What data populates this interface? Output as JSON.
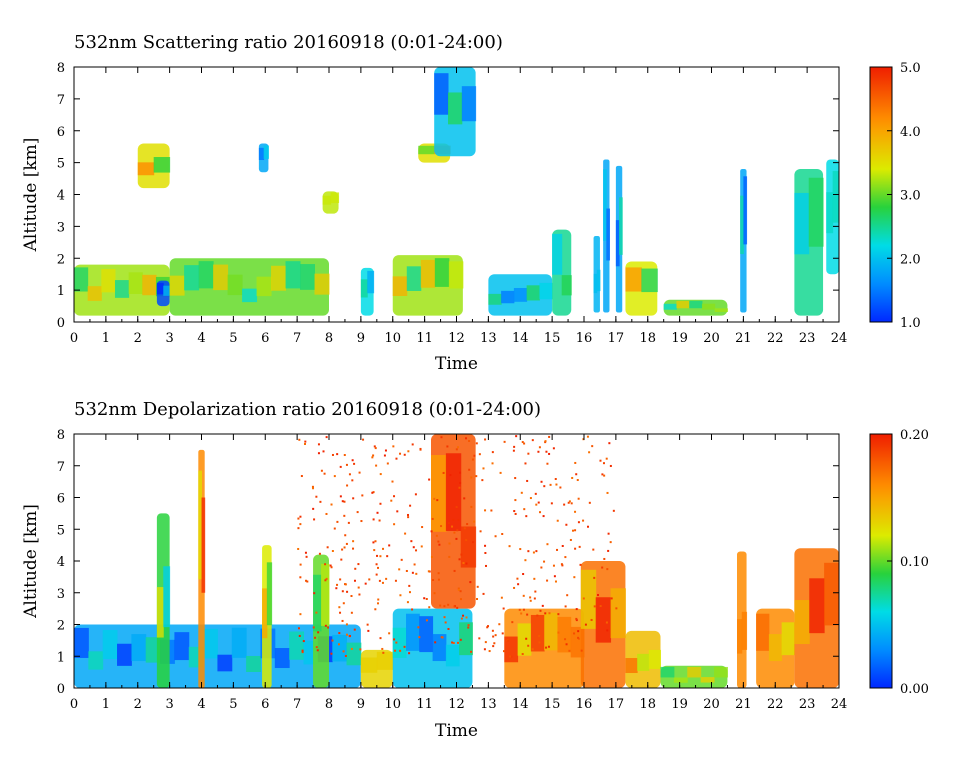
{
  "chart_data": [
    {
      "type": "heatmap",
      "title": "532nm Scattering ratio  20160918 (0:01-24:00)",
      "xlabel": "Time",
      "ylabel": "Altitude [km]",
      "xlim": [
        0,
        24
      ],
      "ylim": [
        0,
        8
      ],
      "x_ticks": [
        "0",
        "1",
        "2",
        "3",
        "4",
        "5",
        "6",
        "7",
        "8",
        "9",
        "10",
        "11",
        "12",
        "13",
        "14",
        "15",
        "16",
        "17",
        "18",
        "19",
        "20",
        "21",
        "22",
        "23",
        "24"
      ],
      "y_ticks": [
        "0",
        "1",
        "2",
        "3",
        "4",
        "5",
        "6",
        "7",
        "8"
      ],
      "colorbar": {
        "min": 1.0,
        "max": 5.0,
        "ticks": [
          "1.0",
          "2.0",
          "3.0",
          "4.0",
          "5.0"
        ]
      },
      "features": [
        {
          "t0": 0.0,
          "t1": 3.0,
          "z0": 0.2,
          "z1": 1.8,
          "v": 3.2
        },
        {
          "t0": 2.0,
          "t1": 3.0,
          "z0": 4.2,
          "z1": 5.6,
          "v": 3.5
        },
        {
          "t0": 2.6,
          "t1": 3.0,
          "z0": 0.5,
          "z1": 1.3,
          "v": 1.2
        },
        {
          "t0": 3.0,
          "t1": 8.0,
          "z0": 0.2,
          "z1": 2.0,
          "v": 3.0
        },
        {
          "t0": 5.8,
          "t1": 6.1,
          "z0": 4.7,
          "z1": 5.6,
          "v": 1.8
        },
        {
          "t0": 7.8,
          "t1": 8.3,
          "z0": 3.4,
          "z1": 4.1,
          "v": 3.3
        },
        {
          "t0": 9.0,
          "t1": 9.4,
          "z0": 0.2,
          "z1": 1.7,
          "v": 2.2
        },
        {
          "t0": 10.8,
          "t1": 11.8,
          "z0": 5.0,
          "z1": 5.6,
          "v": 3.5
        },
        {
          "t0": 10.0,
          "t1": 12.2,
          "z0": 0.2,
          "z1": 2.1,
          "v": 3.2
        },
        {
          "t0": 11.3,
          "t1": 12.6,
          "z0": 5.2,
          "z1": 8.0,
          "v": 2.0
        },
        {
          "t0": 13.0,
          "t1": 15.0,
          "z0": 0.2,
          "z1": 1.5,
          "v": 2.0
        },
        {
          "t0": 15.0,
          "t1": 15.6,
          "z0": 0.2,
          "z1": 2.9,
          "v": 2.5
        },
        {
          "t0": 16.3,
          "t1": 16.5,
          "z0": 0.3,
          "z1": 2.7,
          "v": 1.9
        },
        {
          "t0": 16.6,
          "t1": 16.8,
          "z0": 0.3,
          "z1": 5.1,
          "v": 1.8
        },
        {
          "t0": 17.0,
          "t1": 17.2,
          "z0": 0.3,
          "z1": 4.9,
          "v": 1.8
        },
        {
          "t0": 17.3,
          "t1": 18.3,
          "z0": 0.2,
          "z1": 1.9,
          "v": 3.4
        },
        {
          "t0": 18.5,
          "t1": 20.5,
          "z0": 0.2,
          "z1": 0.7,
          "v": 3.0
        },
        {
          "t0": 20.9,
          "t1": 21.1,
          "z0": 0.3,
          "z1": 4.8,
          "v": 1.8
        },
        {
          "t0": 22.6,
          "t1": 23.5,
          "z0": 0.2,
          "z1": 4.8,
          "v": 2.5
        },
        {
          "t0": 23.6,
          "t1": 24.0,
          "z0": 1.5,
          "z1": 5.1,
          "v": 2.2
        }
      ]
    },
    {
      "type": "heatmap",
      "title": "532nm Depolarization ratio  20160918 (0:01-24:00)",
      "xlabel": "Time",
      "ylabel": "Altitude [km]",
      "xlim": [
        0,
        24
      ],
      "ylim": [
        0,
        8
      ],
      "x_ticks": [
        "0",
        "1",
        "2",
        "3",
        "4",
        "5",
        "6",
        "7",
        "8",
        "9",
        "10",
        "11",
        "12",
        "13",
        "14",
        "15",
        "16",
        "17",
        "18",
        "19",
        "20",
        "21",
        "22",
        "23",
        "24"
      ],
      "y_ticks": [
        "0",
        "1",
        "2",
        "3",
        "4",
        "5",
        "6",
        "7",
        "8"
      ],
      "colorbar": {
        "min": 0.0,
        "max": 0.2,
        "ticks": [
          "0.00",
          "0.10",
          "0.20"
        ]
      },
      "features": [
        {
          "t0": 0.0,
          "t1": 9.0,
          "z0": 0.0,
          "z1": 2.0,
          "v": 0.04
        },
        {
          "t0": 2.6,
          "t1": 3.0,
          "z0": 0.0,
          "z1": 5.5,
          "v": 0.09
        },
        {
          "t0": 3.9,
          "t1": 4.1,
          "z0": 0.0,
          "z1": 7.5,
          "v": 0.16
        },
        {
          "t0": 5.9,
          "t1": 6.2,
          "z0": 0.0,
          "z1": 4.5,
          "v": 0.12
        },
        {
          "t0": 7.5,
          "t1": 8.0,
          "z0": 0.0,
          "z1": 4.2,
          "v": 0.1
        },
        {
          "t0": 9.0,
          "t1": 10.0,
          "z0": 0.0,
          "z1": 1.2,
          "v": 0.13
        },
        {
          "t0": 10.0,
          "t1": 12.5,
          "z0": 0.0,
          "z1": 2.5,
          "v": 0.05
        },
        {
          "t0": 11.2,
          "t1": 12.6,
          "z0": 2.5,
          "z1": 8.0,
          "v": 0.18
        },
        {
          "t0": 13.5,
          "t1": 16.0,
          "z0": 0.0,
          "z1": 2.5,
          "v": 0.16
        },
        {
          "t0": 15.9,
          "t1": 17.3,
          "z0": 0.0,
          "z1": 4.0,
          "v": 0.17
        },
        {
          "t0": 17.3,
          "t1": 18.4,
          "z0": 0.0,
          "z1": 1.8,
          "v": 0.14
        },
        {
          "t0": 18.4,
          "t1": 20.5,
          "z0": 0.0,
          "z1": 0.7,
          "v": 0.1
        },
        {
          "t0": 20.8,
          "t1": 21.1,
          "z0": 0.0,
          "z1": 4.3,
          "v": 0.16
        },
        {
          "t0": 21.4,
          "t1": 22.6,
          "z0": 0.0,
          "z1": 2.5,
          "v": 0.16
        },
        {
          "t0": 22.6,
          "t1": 24.0,
          "z0": 0.0,
          "z1": 4.4,
          "v": 0.17
        }
      ]
    }
  ]
}
